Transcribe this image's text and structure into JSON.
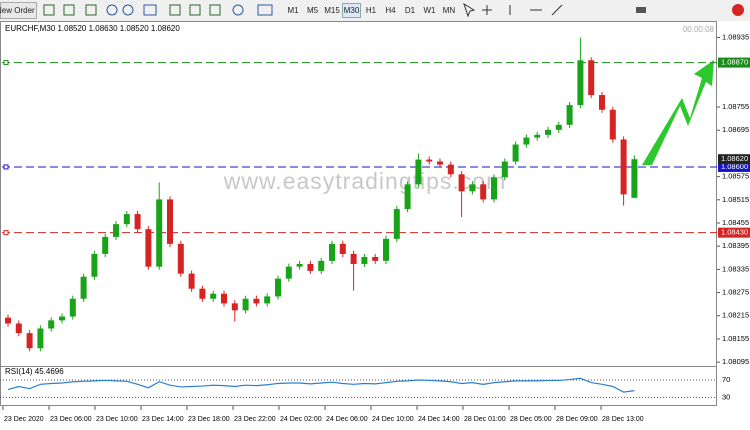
{
  "toolbar": {
    "new_order": "New Order",
    "timeframes": [
      "M1",
      "M5",
      "M15",
      "M30",
      "H1",
      "H4",
      "D1",
      "W1",
      "MN"
    ]
  },
  "chart_data": {
    "type": "candlestick",
    "header": "EURCHF,M30  1.08520 1.08630 1.08520 1.08620",
    "timer": "00:00:08",
    "watermark": "www.easytradingtips.com",
    "up_color": "#19a319",
    "down_color": "#d42424",
    "open": [
      1.0821,
      1.08195,
      1.0817,
      1.08131,
      1.08182,
      1.08203,
      1.08213,
      1.08259,
      1.08316,
      1.08375,
      1.08419,
      1.08452,
      1.08478,
      1.08439,
      1.08342,
      1.08516,
      1.08401,
      1.08324,
      1.08285,
      1.08259,
      1.08272,
      1.08247,
      1.08229,
      1.08259,
      1.08247,
      1.08265,
      1.08311,
      1.08342,
      1.08349,
      1.08331,
      1.08357,
      1.08401,
      1.08375,
      1.08349,
      1.08367,
      1.08357,
      1.08414,
      1.08491,
      1.08555,
      1.08619,
      1.08614,
      1.08606,
      1.08581,
      1.08537,
      1.08555,
      1.08516,
      1.08573,
      1.08614,
      1.08658,
      1.08676,
      1.08683,
      1.08696,
      1.08709,
      1.0876,
      1.08876,
      1.08786,
      1.08748,
      1.08671,
      1.0852
    ],
    "high": [
      1.08218,
      1.08203,
      1.08178,
      1.0819,
      1.08211,
      1.08221,
      1.08267,
      1.08324,
      1.08383,
      1.08427,
      1.0846,
      1.08486,
      1.08486,
      1.08447,
      1.0856,
      1.08524,
      1.08409,
      1.08332,
      1.08293,
      1.0828,
      1.0828,
      1.08255,
      1.08267,
      1.08267,
      1.08273,
      1.08319,
      1.0835,
      1.08357,
      1.08357,
      1.08365,
      1.08409,
      1.08409,
      1.08383,
      1.08375,
      1.08375,
      1.08422,
      1.08499,
      1.08563,
      1.08635,
      1.08627,
      1.08622,
      1.08614,
      1.08589,
      1.08563,
      1.08563,
      1.08581,
      1.08622,
      1.08666,
      1.08684,
      1.08691,
      1.08704,
      1.08717,
      1.08768,
      1.08935,
      1.08884,
      1.08794,
      1.08756,
      1.08679,
      1.0863
    ],
    "low": [
      1.08187,
      1.08162,
      1.08123,
      1.08123,
      1.08174,
      1.08195,
      1.08205,
      1.08251,
      1.08308,
      1.08367,
      1.08411,
      1.08444,
      1.08431,
      1.08334,
      1.08334,
      1.08393,
      1.08316,
      1.08277,
      1.08251,
      1.08251,
      1.08239,
      1.082,
      1.08221,
      1.08239,
      1.08239,
      1.08257,
      1.08303,
      1.08334,
      1.08323,
      1.08323,
      1.08349,
      1.08367,
      1.0828,
      1.08341,
      1.08349,
      1.08349,
      1.08406,
      1.08483,
      1.08547,
      1.08606,
      1.08598,
      1.08573,
      1.0847,
      1.08529,
      1.08508,
      1.08508,
      1.08565,
      1.08606,
      1.0865,
      1.08668,
      1.08675,
      1.08688,
      1.08701,
      1.08752,
      1.08778,
      1.0874,
      1.08663,
      1.085,
      1.0852
    ],
    "close": [
      1.08195,
      1.0817,
      1.08131,
      1.08182,
      1.08203,
      1.08213,
      1.08259,
      1.08316,
      1.08375,
      1.08419,
      1.08452,
      1.08478,
      1.08439,
      1.08342,
      1.08516,
      1.08401,
      1.08324,
      1.08285,
      1.08259,
      1.08272,
      1.08247,
      1.08229,
      1.08259,
      1.08247,
      1.08265,
      1.08311,
      1.08342,
      1.08349,
      1.08331,
      1.08357,
      1.08401,
      1.08375,
      1.08349,
      1.08367,
      1.08357,
      1.08414,
      1.08491,
      1.08555,
      1.08619,
      1.08614,
      1.08606,
      1.08581,
      1.08537,
      1.08555,
      1.08516,
      1.08573,
      1.08614,
      1.08658,
      1.08676,
      1.08683,
      1.08696,
      1.08709,
      1.0876,
      1.08876,
      1.08786,
      1.08748,
      1.08671,
      1.08529,
      1.0862
    ],
    "ylim": [
      1.08085,
      1.08975
    ],
    "yticks": [
      1.08935,
      1.08755,
      1.08695,
      1.08575,
      1.08515,
      1.08455,
      1.08395,
      1.08335,
      1.08275,
      1.08215,
      1.08155,
      1.08095
    ],
    "levels": [
      {
        "value": 1.0887,
        "label": "1.08870",
        "color": "#1a8c1a"
      },
      {
        "value": 1.086,
        "label": "1.08600",
        "color": "#1616c8"
      },
      {
        "value": 1.0843,
        "label": "1.08430",
        "color": "#d42424"
      }
    ],
    "bid": {
      "value": 1.0862,
      "label": "1.08620"
    },
    "time_labels": [
      "23 Dec 2020",
      "23 Dec 06:00",
      "23 Dec 10:00",
      "23 Dec 14:00",
      "23 Dec 18:00",
      "23 Dec 22:00",
      "24 Dec 02:00",
      "24 Dec 06:00",
      "24 Dec 10:00",
      "24 Dec 14:00",
      "28 Dec 01:00",
      "28 Dec 05:00",
      "28 Dec 09:00",
      "28 Dec 13:00"
    ],
    "rsi": {
      "title": "RSI(14) 45.4696",
      "color": "#2a7fd4",
      "ylim": [
        10,
        100
      ],
      "yticks": [
        70,
        30
      ],
      "values": [
        48,
        55,
        50,
        60,
        62,
        63,
        66,
        67,
        68,
        69,
        68,
        67,
        60,
        52,
        66,
        58,
        54,
        55,
        56,
        58,
        57,
        55,
        58,
        57,
        59,
        62,
        63,
        63,
        61,
        63,
        65,
        62,
        60,
        62,
        61,
        64,
        67,
        68,
        70,
        69,
        68,
        66,
        62,
        64,
        60,
        64,
        66,
        68,
        68,
        68,
        69,
        69,
        71,
        74,
        64,
        60,
        55,
        42,
        45.4696
      ]
    }
  }
}
